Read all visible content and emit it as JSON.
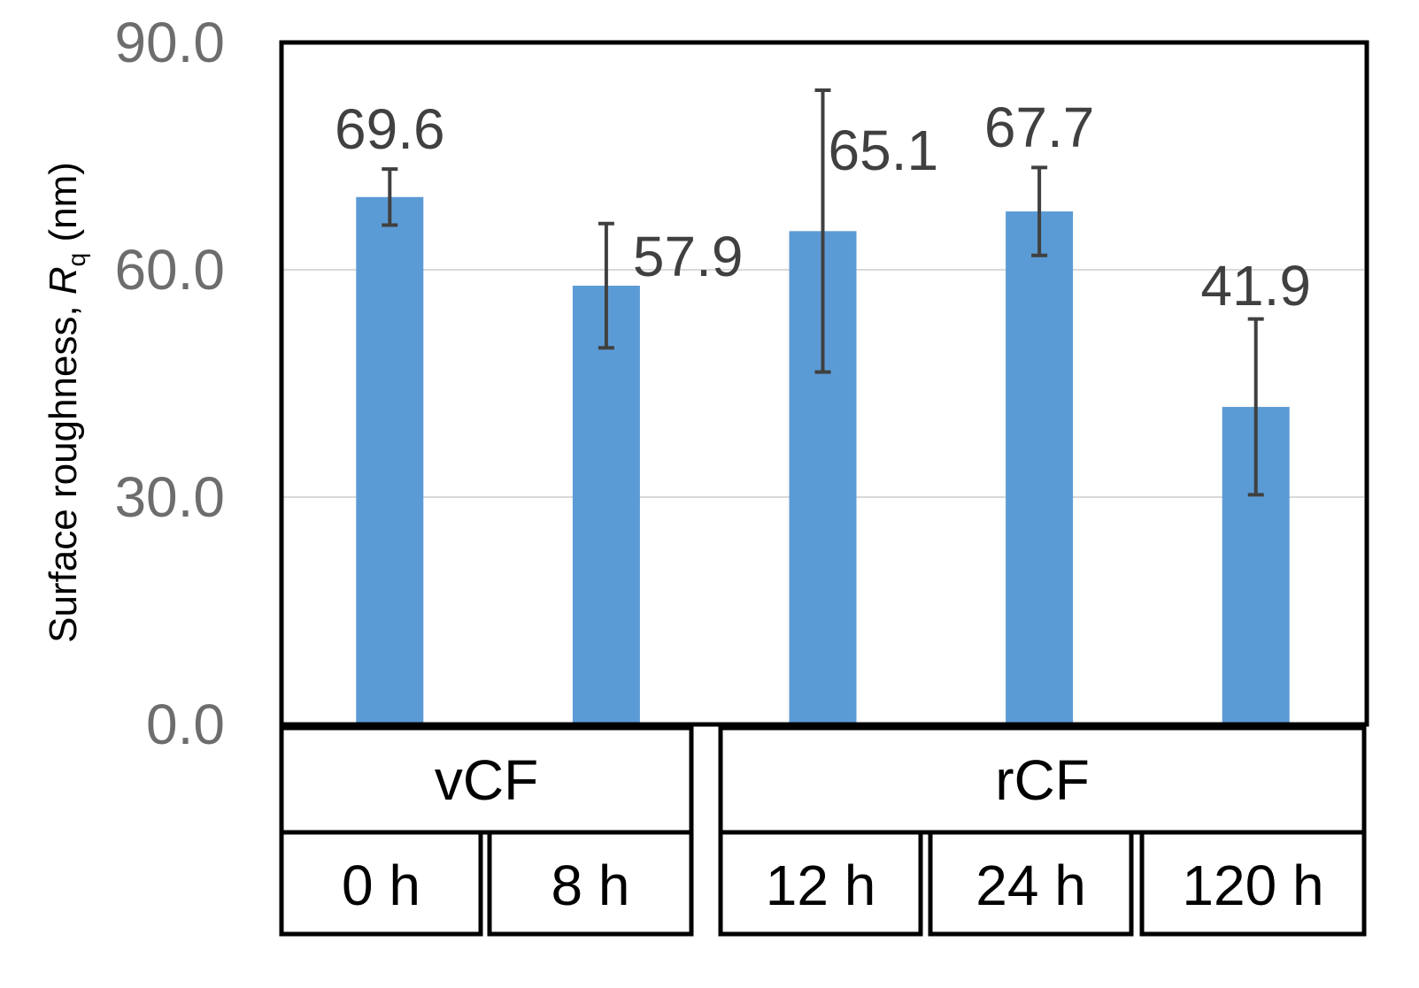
{
  "chart_data": {
    "type": "bar",
    "title": "",
    "xlabel": "",
    "ylabel": {
      "prefix": "Surface roughness, ",
      "symbol": "R",
      "subscript": "q",
      "suffix": " (nm)"
    },
    "ylim": [
      0,
      90
    ],
    "yticks": [
      "0.0",
      "30.0",
      "60.0",
      "90.0"
    ],
    "gridlines": true,
    "categories": [
      "0 h",
      "8 h",
      "12 h",
      "24 h",
      "120 h"
    ],
    "groups": [
      {
        "name": "vCF",
        "categories": [
          "0 h",
          "8 h"
        ]
      },
      {
        "name": "rCF",
        "categories": [
          "12 h",
          "24 h",
          "120 h"
        ]
      }
    ],
    "series": [
      {
        "name": "Surface roughness",
        "values": [
          69.6,
          57.9,
          65.1,
          67.7,
          41.9
        ],
        "labels": [
          "69.6",
          "57.9",
          "65.1",
          "67.7",
          "41.9"
        ],
        "error": [
          3.7,
          8.2,
          18.6,
          5.8,
          11.6
        ]
      }
    ]
  },
  "colors": {
    "bar": "#5b9bd5",
    "errorbar": "#404040",
    "gridline": "#d9d9d9",
    "frame": "#000000",
    "tick_text": "#6d6d6d",
    "label_text": "#404040"
  }
}
